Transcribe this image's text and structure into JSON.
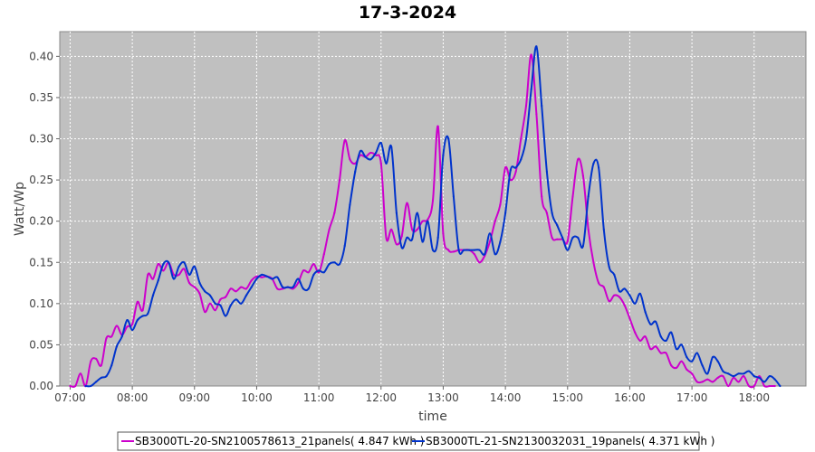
{
  "chart_data": {
    "type": "line",
    "title": "17-3-2024",
    "xlabel": "time",
    "ylabel": "Watt/Wp",
    "x_tick_labels": [
      "07:00",
      "08:00",
      "09:00",
      "10:00",
      "11:00",
      "12:00",
      "13:00",
      "14:00",
      "15:00",
      "16:00",
      "17:00",
      "18:00"
    ],
    "y_tick_labels": [
      "0.00",
      "0.05",
      "0.10",
      "0.15",
      "0.20",
      "0.25",
      "0.30",
      "0.35",
      "0.40"
    ],
    "xlim": [
      "06:50",
      "18:50"
    ],
    "ylim": [
      0,
      0.43
    ],
    "grid": true,
    "legend_position": "bottom",
    "series": [
      {
        "name": "SB3000TL-20-SN2100578613_21panels",
        "energy_label": "( 4.847 kWh )",
        "color": "#cc00cc",
        "points": [
          [
            "07:00",
            0.0
          ],
          [
            "07:05",
            0.0
          ],
          [
            "07:10",
            0.015
          ],
          [
            "07:15",
            0.0
          ],
          [
            "07:20",
            0.03
          ],
          [
            "07:25",
            0.033
          ],
          [
            "07:30",
            0.025
          ],
          [
            "07:35",
            0.058
          ],
          [
            "07:40",
            0.06
          ],
          [
            "07:45",
            0.073
          ],
          [
            "07:50",
            0.062
          ],
          [
            "07:55",
            0.072
          ],
          [
            "08:00",
            0.075
          ],
          [
            "08:05",
            0.102
          ],
          [
            "08:10",
            0.092
          ],
          [
            "08:15",
            0.135
          ],
          [
            "08:20",
            0.13
          ],
          [
            "08:25",
            0.148
          ],
          [
            "08:30",
            0.14
          ],
          [
            "08:35",
            0.15
          ],
          [
            "08:40",
            0.135
          ],
          [
            "08:45",
            0.135
          ],
          [
            "08:50",
            0.142
          ],
          [
            "08:55",
            0.125
          ],
          [
            "09:00",
            0.12
          ],
          [
            "09:05",
            0.112
          ],
          [
            "09:10",
            0.09
          ],
          [
            "09:15",
            0.1
          ],
          [
            "09:20",
            0.092
          ],
          [
            "09:25",
            0.105
          ],
          [
            "09:30",
            0.108
          ],
          [
            "09:35",
            0.118
          ],
          [
            "09:40",
            0.115
          ],
          [
            "09:45",
            0.12
          ],
          [
            "09:50",
            0.118
          ],
          [
            "09:55",
            0.128
          ],
          [
            "10:00",
            0.133
          ],
          [
            "10:05",
            0.132
          ],
          [
            "10:10",
            0.133
          ],
          [
            "10:15",
            0.13
          ],
          [
            "10:20",
            0.118
          ],
          [
            "10:25",
            0.118
          ],
          [
            "10:30",
            0.12
          ],
          [
            "10:35",
            0.118
          ],
          [
            "10:40",
            0.125
          ],
          [
            "10:45",
            0.14
          ],
          [
            "10:50",
            0.138
          ],
          [
            "10:55",
            0.148
          ],
          [
            "11:00",
            0.138
          ],
          [
            "11:05",
            0.16
          ],
          [
            "11:10",
            0.19
          ],
          [
            "11:15",
            0.21
          ],
          [
            "11:20",
            0.25
          ],
          [
            "11:25",
            0.298
          ],
          [
            "11:30",
            0.275
          ],
          [
            "11:35",
            0.27
          ],
          [
            "11:40",
            0.28
          ],
          [
            "11:45",
            0.278
          ],
          [
            "11:50",
            0.283
          ],
          [
            "11:55",
            0.28
          ],
          [
            "12:00",
            0.27
          ],
          [
            "12:05",
            0.18
          ],
          [
            "12:10",
            0.19
          ],
          [
            "12:15",
            0.172
          ],
          [
            "12:20",
            0.182
          ],
          [
            "12:25",
            0.222
          ],
          [
            "12:30",
            0.19
          ],
          [
            "12:35",
            0.19
          ],
          [
            "12:40",
            0.2
          ],
          [
            "12:45",
            0.202
          ],
          [
            "12:50",
            0.225
          ],
          [
            "12:55",
            0.315
          ],
          [
            "13:00",
            0.185
          ],
          [
            "13:05",
            0.165
          ],
          [
            "13:10",
            0.163
          ],
          [
            "13:15",
            0.165
          ],
          [
            "13:20",
            0.165
          ],
          [
            "13:25",
            0.165
          ],
          [
            "13:30",
            0.16
          ],
          [
            "13:35",
            0.15
          ],
          [
            "13:40",
            0.158
          ],
          [
            "13:45",
            0.175
          ],
          [
            "13:50",
            0.2
          ],
          [
            "13:55",
            0.22
          ],
          [
            "14:00",
            0.265
          ],
          [
            "14:05",
            0.25
          ],
          [
            "14:10",
            0.26
          ],
          [
            "14:15",
            0.3
          ],
          [
            "14:20",
            0.34
          ],
          [
            "14:25",
            0.402
          ],
          [
            "14:30",
            0.33
          ],
          [
            "14:35",
            0.23
          ],
          [
            "14:40",
            0.21
          ],
          [
            "14:45",
            0.18
          ],
          [
            "14:50",
            0.178
          ],
          [
            "14:55",
            0.178
          ],
          [
            "15:00",
            0.176
          ],
          [
            "15:05",
            0.23
          ],
          [
            "15:10",
            0.275
          ],
          [
            "15:15",
            0.255
          ],
          [
            "15:20",
            0.19
          ],
          [
            "15:25",
            0.15
          ],
          [
            "15:30",
            0.125
          ],
          [
            "15:35",
            0.12
          ],
          [
            "15:40",
            0.103
          ],
          [
            "15:45",
            0.11
          ],
          [
            "15:50",
            0.108
          ],
          [
            "15:55",
            0.098
          ],
          [
            "16:00",
            0.082
          ],
          [
            "16:05",
            0.065
          ],
          [
            "16:10",
            0.055
          ],
          [
            "16:15",
            0.06
          ],
          [
            "16:20",
            0.045
          ],
          [
            "16:25",
            0.048
          ],
          [
            "16:30",
            0.04
          ],
          [
            "16:35",
            0.04
          ],
          [
            "16:40",
            0.025
          ],
          [
            "16:45",
            0.022
          ],
          [
            "16:50",
            0.03
          ],
          [
            "16:55",
            0.02
          ],
          [
            "17:00",
            0.015
          ],
          [
            "17:05",
            0.005
          ],
          [
            "17:10",
            0.005
          ],
          [
            "17:15",
            0.008
          ],
          [
            "17:20",
            0.005
          ],
          [
            "17:25",
            0.01
          ],
          [
            "17:30",
            0.012
          ],
          [
            "17:35",
            0.0
          ],
          [
            "17:40",
            0.01
          ],
          [
            "17:45",
            0.005
          ],
          [
            "17:50",
            0.012
          ],
          [
            "17:55",
            0.0
          ],
          [
            "18:00",
            0.0
          ],
          [
            "18:05",
            0.012
          ],
          [
            "18:10",
            0.0
          ],
          [
            "18:15",
            0.0
          ],
          [
            "18:20",
            0.0
          ]
        ]
      },
      {
        "name": "SB3000TL-21-SN2130032031_19panels",
        "energy_label": "( 4.371 kWh )",
        "color": "#0033cc",
        "points": [
          [
            "07:15",
            0.0
          ],
          [
            "07:20",
            0.0
          ],
          [
            "07:25",
            0.005
          ],
          [
            "07:30",
            0.01
          ],
          [
            "07:35",
            0.012
          ],
          [
            "07:40",
            0.025
          ],
          [
            "07:45",
            0.048
          ],
          [
            "07:50",
            0.06
          ],
          [
            "07:55",
            0.08
          ],
          [
            "08:00",
            0.068
          ],
          [
            "08:05",
            0.08
          ],
          [
            "08:10",
            0.085
          ],
          [
            "08:15",
            0.088
          ],
          [
            "08:20",
            0.11
          ],
          [
            "08:25",
            0.128
          ],
          [
            "08:30",
            0.148
          ],
          [
            "08:35",
            0.15
          ],
          [
            "08:40",
            0.13
          ],
          [
            "08:45",
            0.145
          ],
          [
            "08:50",
            0.15
          ],
          [
            "08:55",
            0.135
          ],
          [
            "09:00",
            0.145
          ],
          [
            "09:05",
            0.125
          ],
          [
            "09:10",
            0.115
          ],
          [
            "09:15",
            0.11
          ],
          [
            "09:20",
            0.1
          ],
          [
            "09:25",
            0.098
          ],
          [
            "09:30",
            0.085
          ],
          [
            "09:35",
            0.098
          ],
          [
            "09:40",
            0.105
          ],
          [
            "09:45",
            0.1
          ],
          [
            "09:50",
            0.11
          ],
          [
            "09:55",
            0.12
          ],
          [
            "10:00",
            0.13
          ],
          [
            "10:05",
            0.135
          ],
          [
            "10:10",
            0.133
          ],
          [
            "10:15",
            0.13
          ],
          [
            "10:20",
            0.132
          ],
          [
            "10:25",
            0.12
          ],
          [
            "10:30",
            0.12
          ],
          [
            "10:35",
            0.12
          ],
          [
            "10:40",
            0.13
          ],
          [
            "10:45",
            0.118
          ],
          [
            "10:50",
            0.118
          ],
          [
            "10:55",
            0.135
          ],
          [
            "11:00",
            0.14
          ],
          [
            "11:05",
            0.138
          ],
          [
            "11:10",
            0.148
          ],
          [
            "11:15",
            0.15
          ],
          [
            "11:20",
            0.148
          ],
          [
            "11:25",
            0.17
          ],
          [
            "11:30",
            0.22
          ],
          [
            "11:35",
            0.26
          ],
          [
            "11:40",
            0.285
          ],
          [
            "11:45",
            0.278
          ],
          [
            "11:50",
            0.275
          ],
          [
            "11:55",
            0.283
          ],
          [
            "12:00",
            0.295
          ],
          [
            "12:05",
            0.27
          ],
          [
            "12:10",
            0.29
          ],
          [
            "12:15",
            0.21
          ],
          [
            "12:20",
            0.168
          ],
          [
            "12:25",
            0.18
          ],
          [
            "12:30",
            0.178
          ],
          [
            "12:35",
            0.21
          ],
          [
            "12:40",
            0.175
          ],
          [
            "12:45",
            0.2
          ],
          [
            "12:50",
            0.165
          ],
          [
            "12:55",
            0.18
          ],
          [
            "13:00",
            0.28
          ],
          [
            "13:05",
            0.3
          ],
          [
            "13:10",
            0.23
          ],
          [
            "13:15",
            0.165
          ],
          [
            "13:20",
            0.165
          ],
          [
            "13:25",
            0.165
          ],
          [
            "13:30",
            0.165
          ],
          [
            "13:35",
            0.165
          ],
          [
            "13:40",
            0.16
          ],
          [
            "13:45",
            0.185
          ],
          [
            "13:50",
            0.16
          ],
          [
            "13:55",
            0.175
          ],
          [
            "14:00",
            0.21
          ],
          [
            "14:05",
            0.262
          ],
          [
            "14:10",
            0.265
          ],
          [
            "14:15",
            0.275
          ],
          [
            "14:20",
            0.3
          ],
          [
            "14:25",
            0.36
          ],
          [
            "14:30",
            0.412
          ],
          [
            "14:35",
            0.34
          ],
          [
            "14:40",
            0.26
          ],
          [
            "14:45",
            0.21
          ],
          [
            "14:50",
            0.195
          ],
          [
            "14:55",
            0.18
          ],
          [
            "15:00",
            0.165
          ],
          [
            "15:05",
            0.18
          ],
          [
            "15:10",
            0.18
          ],
          [
            "15:15",
            0.17
          ],
          [
            "15:20",
            0.23
          ],
          [
            "15:25",
            0.27
          ],
          [
            "15:30",
            0.265
          ],
          [
            "15:35",
            0.19
          ],
          [
            "15:40",
            0.145
          ],
          [
            "15:45",
            0.135
          ],
          [
            "15:50",
            0.115
          ],
          [
            "15:55",
            0.118
          ],
          [
            "16:00",
            0.11
          ],
          [
            "16:05",
            0.1
          ],
          [
            "16:10",
            0.112
          ],
          [
            "16:15",
            0.09
          ],
          [
            "16:20",
            0.075
          ],
          [
            "16:25",
            0.078
          ],
          [
            "16:30",
            0.06
          ],
          [
            "16:35",
            0.055
          ],
          [
            "16:40",
            0.065
          ],
          [
            "16:45",
            0.045
          ],
          [
            "16:50",
            0.05
          ],
          [
            "16:55",
            0.035
          ],
          [
            "17:00",
            0.03
          ],
          [
            "17:05",
            0.04
          ],
          [
            "17:10",
            0.025
          ],
          [
            "17:15",
            0.015
          ],
          [
            "17:20",
            0.035
          ],
          [
            "17:25",
            0.03
          ],
          [
            "17:30",
            0.018
          ],
          [
            "17:35",
            0.015
          ],
          [
            "17:40",
            0.012
          ],
          [
            "17:45",
            0.015
          ],
          [
            "17:50",
            0.015
          ],
          [
            "17:55",
            0.018
          ],
          [
            "18:00",
            0.012
          ],
          [
            "18:05",
            0.01
          ],
          [
            "18:10",
            0.005
          ],
          [
            "18:15",
            0.012
          ],
          [
            "18:20",
            0.008
          ],
          [
            "18:25",
            0.0
          ]
        ]
      }
    ]
  }
}
